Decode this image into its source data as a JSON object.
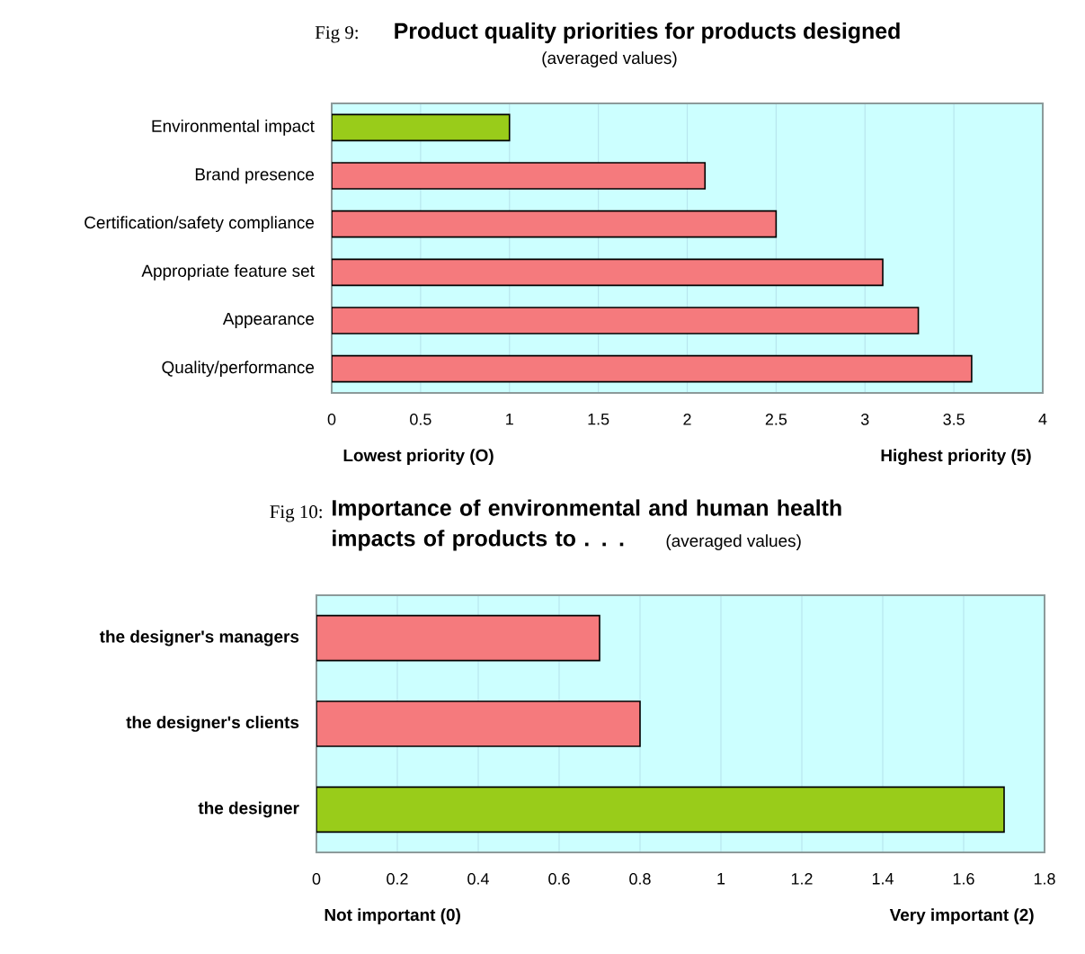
{
  "chart_data": [
    {
      "type": "bar",
      "orientation": "horizontal",
      "title": "Product quality priorities for products designed",
      "subtitle": "(averaged values)",
      "annotations": [
        "Fig 9:",
        "Lowest priority (O)",
        "Highest priority (5)"
      ],
      "categories": [
        "Environmental impact",
        "Brand presence",
        "Certification/safety compliance",
        "Appropriate feature set",
        "Appearance",
        "Quality/performance"
      ],
      "values": [
        1,
        2.1,
        2.5,
        3.1,
        3.3,
        3.6
      ],
      "colors": [
        "#99cc1a",
        "#f57a7d",
        "#f57a7d",
        "#f57a7d",
        "#f57a7d",
        "#f57a7d"
      ],
      "xlim": [
        0,
        4
      ],
      "xticks": [
        0,
        0.5,
        1,
        1.5,
        2,
        2.5,
        3,
        3.5,
        4
      ],
      "grid": "x"
    },
    {
      "type": "bar",
      "orientation": "horizontal",
      "title": "Importance of environmental and human health impacts of products to . . .",
      "subtitle": "(averaged values)",
      "annotations": [
        "Fig 10:",
        "Not important (0)",
        "Very important (2)"
      ],
      "categories": [
        "the designer's managers",
        "the designer's clients",
        "the designer"
      ],
      "values": [
        0.7,
        0.8,
        1.7
      ],
      "colors": [
        "#f57a7d",
        "#f57a7d",
        "#99cc1a"
      ],
      "xlim": [
        0,
        1.8
      ],
      "xticks": [
        0,
        0.2,
        0.4,
        0.6,
        0.8,
        1,
        1.2,
        1.4,
        1.6,
        1.8
      ],
      "grid": "x"
    }
  ]
}
